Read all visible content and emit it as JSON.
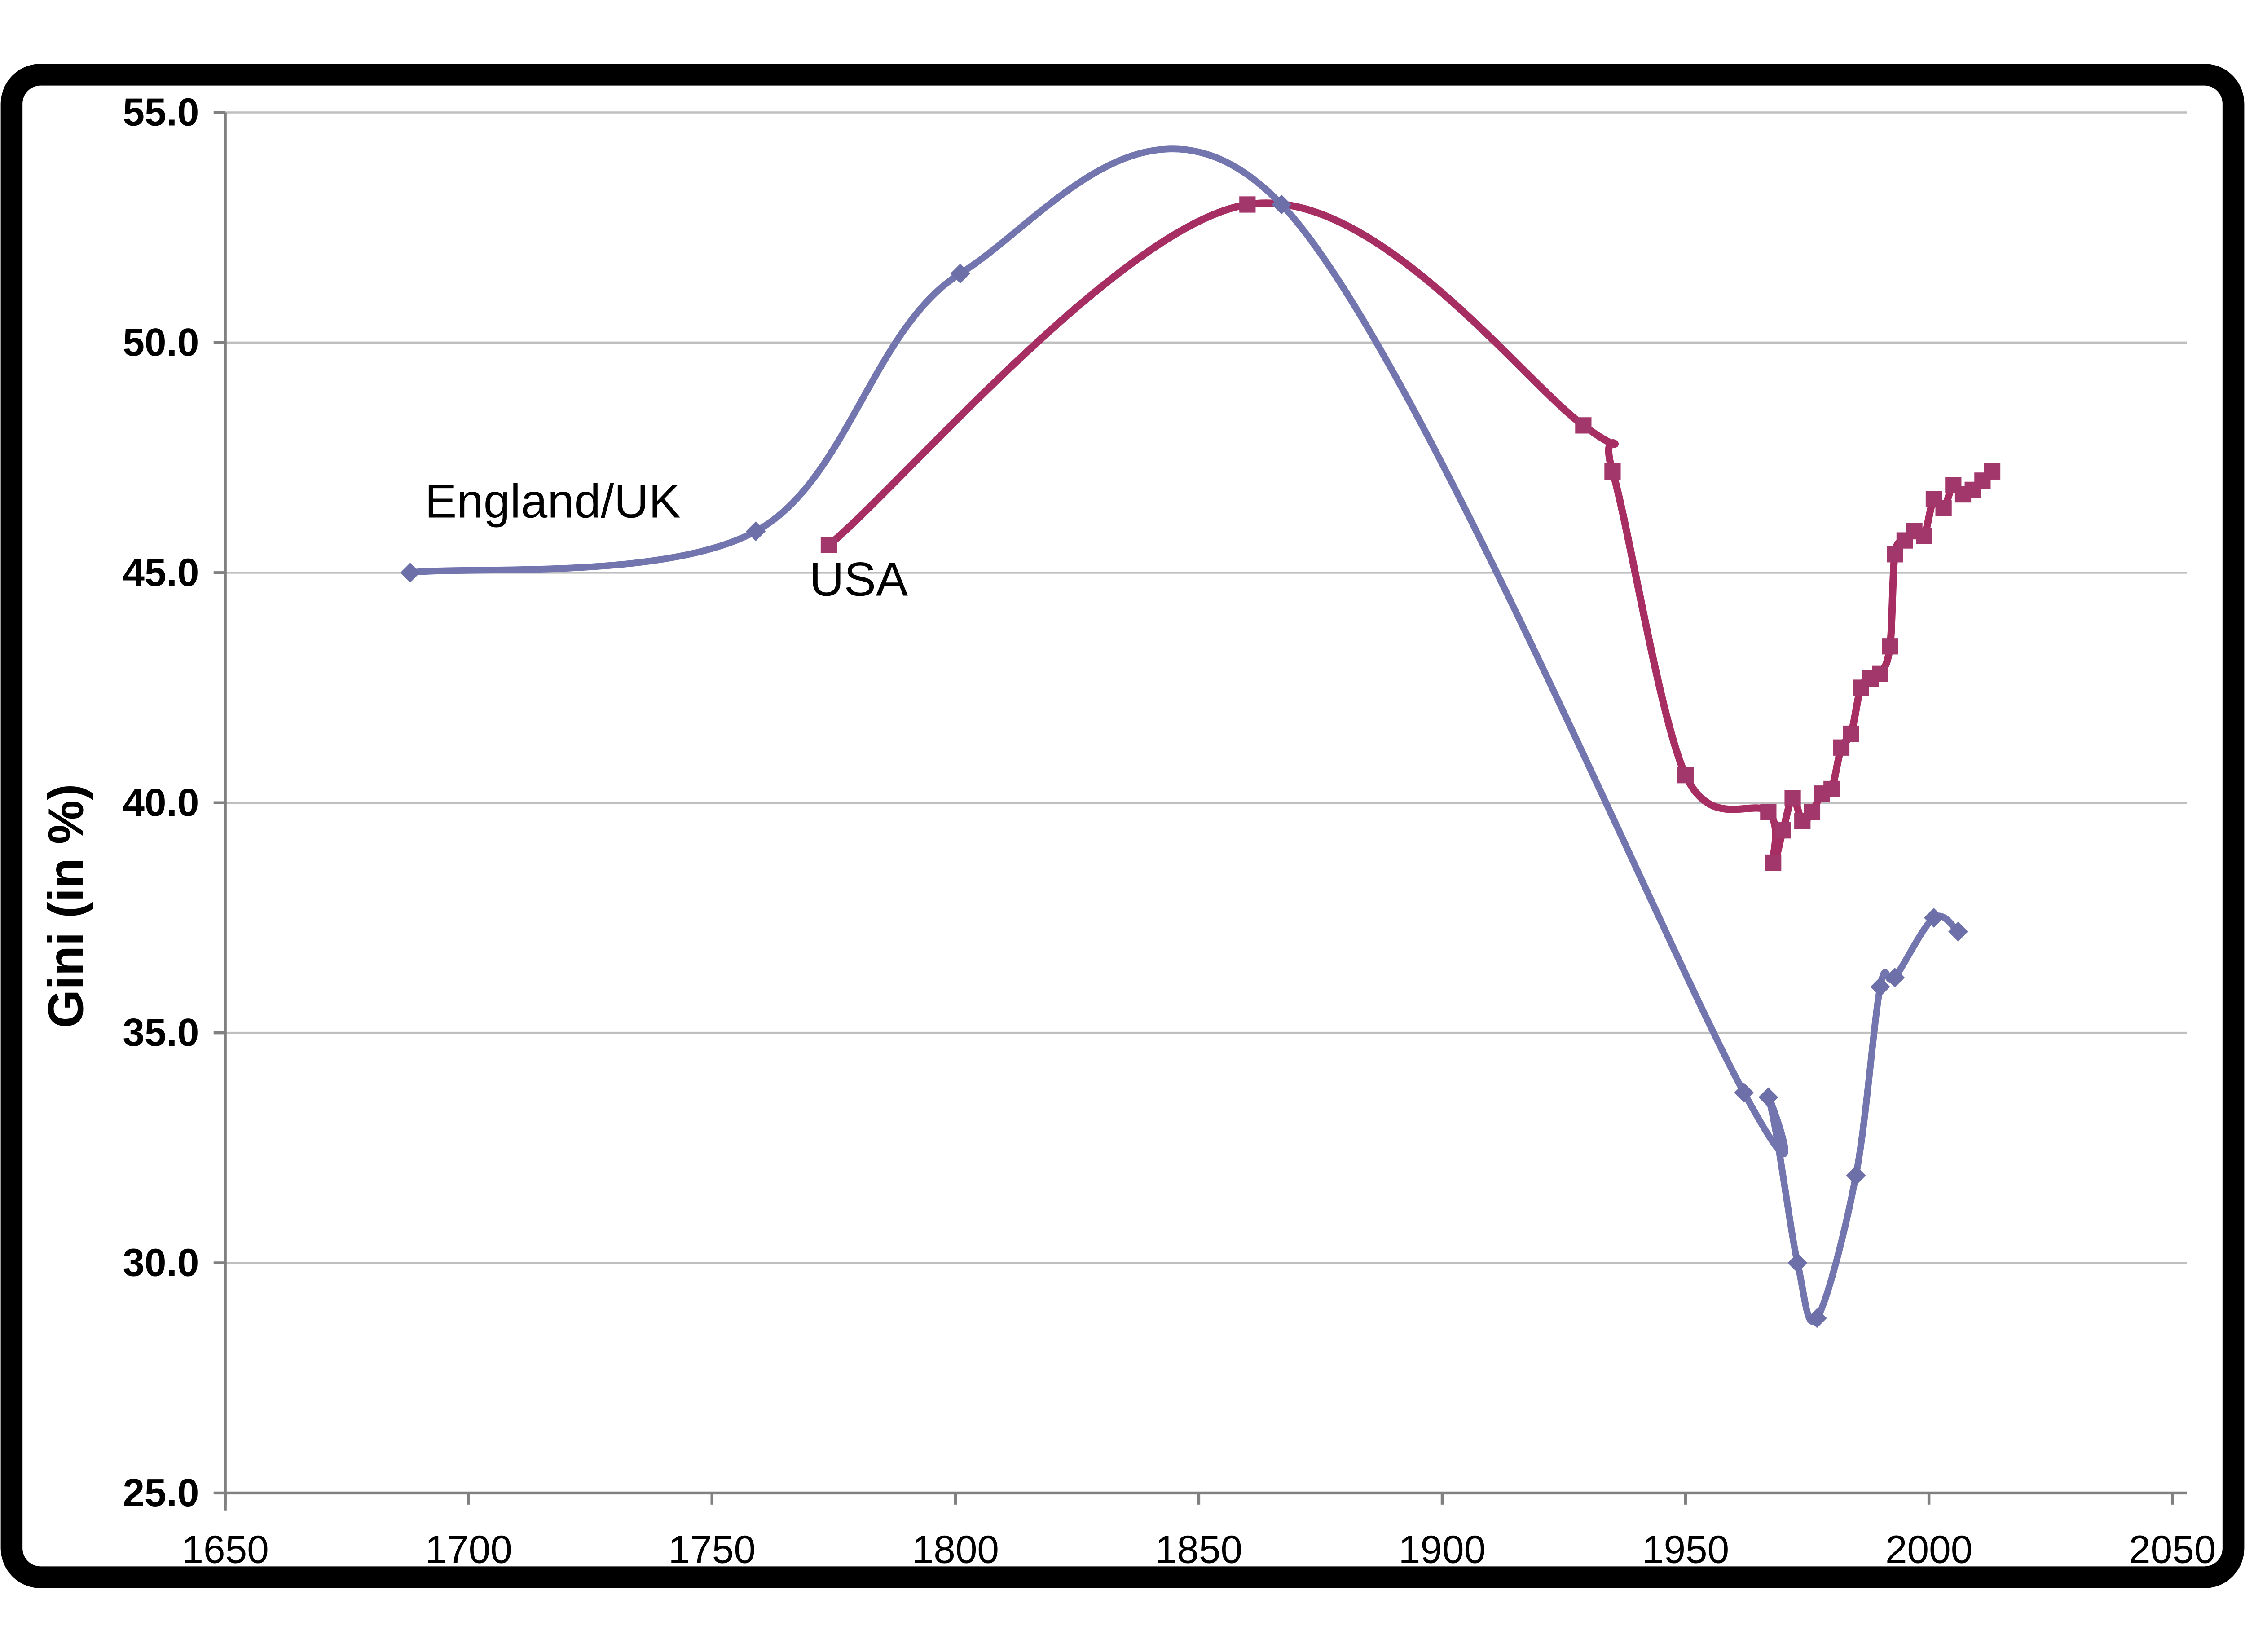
{
  "frame": {
    "background": "#FFFFFF",
    "border_color": "#000000"
  },
  "axes": {
    "y_title": "Gini (in %)",
    "x_tick_labels": [
      "1650",
      "1700",
      "1750",
      "1800",
      "1850",
      "1900",
      "1950",
      "2000",
      "2050"
    ],
    "y_tick_labels": [
      "25.0",
      "30.0",
      "35.0",
      "40.0",
      "45.0",
      "50.0",
      "55.0"
    ],
    "gridline_color": "#BFBFBF",
    "axis_line_color": "#808080"
  },
  "series_labels": {
    "uk": "England/UK",
    "usa": "USA"
  },
  "chart_data": {
    "type": "line",
    "title": "",
    "xlabel": "",
    "ylabel": "Gini (in %)",
    "xlim": [
      1650,
      2050
    ],
    "ylim": [
      25,
      55
    ],
    "x_ticks": [
      1650,
      1700,
      1750,
      1800,
      1850,
      1900,
      1950,
      2000,
      2050
    ],
    "y_ticks": [
      25,
      30,
      35,
      40,
      45,
      50,
      55
    ],
    "grid": "horizontal-only",
    "legend": "inline-labels",
    "smooth": true,
    "notes": {
      "uk_smoothed_curve_peak": {
        "year": 1845,
        "gini": 54.0
      },
      "marker_note": "UK = diamond markers, USA = square markers, smoothed lines, no legend box"
    },
    "series": [
      {
        "name": "USA",
        "color": "#A62E62",
        "marker": "square",
        "marker_color": "#A2376B",
        "label_anchor": {
          "year": 1770,
          "gini": 44.5
        },
        "points": [
          [
            1774,
            45.6
          ],
          [
            1860,
            53.0
          ],
          [
            1929,
            48.2
          ],
          [
            1935,
            47.2
          ],
          [
            1950,
            40.6
          ],
          [
            1967,
            39.8
          ],
          [
            1968,
            38.7
          ],
          [
            1970,
            39.4
          ],
          [
            1972,
            40.1
          ],
          [
            1974,
            39.6
          ],
          [
            1976,
            39.8
          ],
          [
            1978,
            40.2
          ],
          [
            1980,
            40.3
          ],
          [
            1982,
            41.2
          ],
          [
            1984,
            41.5
          ],
          [
            1986,
            42.5
          ],
          [
            1988,
            42.7
          ],
          [
            1990,
            42.8
          ],
          [
            1992,
            43.4
          ],
          [
            1993,
            45.4
          ],
          [
            1995,
            45.7
          ],
          [
            1997,
            45.9
          ],
          [
            1999,
            45.8
          ],
          [
            2001,
            46.6
          ],
          [
            2003,
            46.4
          ],
          [
            2005,
            46.9
          ],
          [
            2007,
            46.7
          ],
          [
            2009,
            46.8
          ],
          [
            2011,
            47.0
          ],
          [
            2013,
            47.2
          ]
        ]
      },
      {
        "name": "England/UK",
        "color": "#7375AE",
        "marker": "diamond",
        "marker_color": "#6D6FA8",
        "label_anchor": {
          "year": 1691,
          "gini": 46.2
        },
        "points": [
          [
            1688,
            45.0
          ],
          [
            1759,
            45.9
          ],
          [
            1801,
            51.5
          ],
          [
            1867,
            53.0
          ],
          [
            1962,
            33.7
          ],
          [
            1967,
            33.6
          ],
          [
            1973,
            30.0
          ],
          [
            1977,
            28.8
          ],
          [
            1985,
            31.9
          ],
          [
            1990,
            36.0
          ],
          [
            1993,
            36.2
          ],
          [
            2001,
            37.5
          ],
          [
            2006,
            37.2
          ]
        ]
      }
    ]
  }
}
